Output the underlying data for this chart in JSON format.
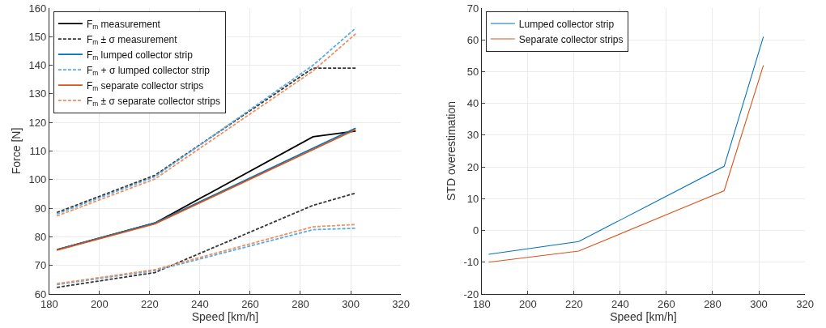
{
  "chart_data": [
    {
      "type": "line",
      "xlabel": "Speed [km/h]",
      "ylabel": "Force [N]",
      "xlim": [
        180,
        320
      ],
      "xticks": [
        180,
        200,
        220,
        240,
        260,
        280,
        300,
        320
      ],
      "ylim": [
        60,
        160
      ],
      "yticks": [
        60,
        70,
        80,
        90,
        100,
        110,
        120,
        130,
        140,
        150,
        160
      ],
      "grid": true,
      "legend": "top left",
      "x": [
        183,
        222,
        285,
        302
      ],
      "series": [
        {
          "name": "F$_{m}$ measurement",
          "color": "#000000",
          "line_style": "solid",
          "values": [
            75.5,
            84.8,
            115,
            117
          ]
        },
        {
          "name": "F$_{m}$ ± σ measurement",
          "color": "#333333",
          "line_style": "dashed",
          "values": [
            88.5,
            101.5,
            139,
            139
          ]
        },
        {
          "color": "#333333",
          "line_style": "dashed",
          "values": [
            62.3,
            67.5,
            91,
            95.3
          ]
        },
        {
          "name": "F$_{m}$ lumped collector strip",
          "color": "#0072bd",
          "line_style": "solid",
          "values": [
            75.5,
            84.8,
            111,
            118
          ]
        },
        {
          "name": "F$_{m}$ + σ lumped collector strip",
          "color": "#5aaae6",
          "line_style": "dashed",
          "values": [
            88,
            101,
            140,
            153
          ]
        },
        {
          "color": "#5aaae6",
          "line_style": "dashed",
          "values": [
            63.3,
            68.2,
            82.5,
            83
          ]
        },
        {
          "name": "F$_{m}$ separate collector strips",
          "color": "#d95319",
          "line_style": "solid",
          "values": [
            75.3,
            84.5,
            110.5,
            117.5
          ]
        },
        {
          "name": "F$_{m}$ ± σ separate collector strips",
          "color": "#f0905f",
          "line_style": "dashed",
          "values": [
            87.3,
            100.2,
            138,
            151
          ]
        },
        {
          "color": "#f0905f",
          "line_style": "dashed",
          "values": [
            63.6,
            68.5,
            83.5,
            84.3
          ]
        }
      ]
    },
    {
      "type": "line",
      "xlabel": "Speed [km/h]",
      "ylabel": "STD overestimation",
      "xlim": [
        180,
        320
      ],
      "xticks": [
        180,
        200,
        220,
        240,
        260,
        280,
        300,
        320
      ],
      "ylim": [
        -20,
        70
      ],
      "yticks": [
        -20,
        -10,
        0,
        10,
        20,
        30,
        40,
        50,
        60,
        70
      ],
      "grid": true,
      "legend": "top left",
      "x": [
        183,
        222,
        285,
        302
      ],
      "series": [
        {
          "name": "Lumped collector strip",
          "color": "#0072bd",
          "line_style": "solid",
          "values": [
            -7.5,
            -3.5,
            20.2,
            61
          ]
        },
        {
          "name": "Separate collector strips",
          "color": "#d95319",
          "line_style": "solid",
          "values": [
            -10,
            -6.5,
            12.5,
            52
          ]
        }
      ]
    }
  ]
}
